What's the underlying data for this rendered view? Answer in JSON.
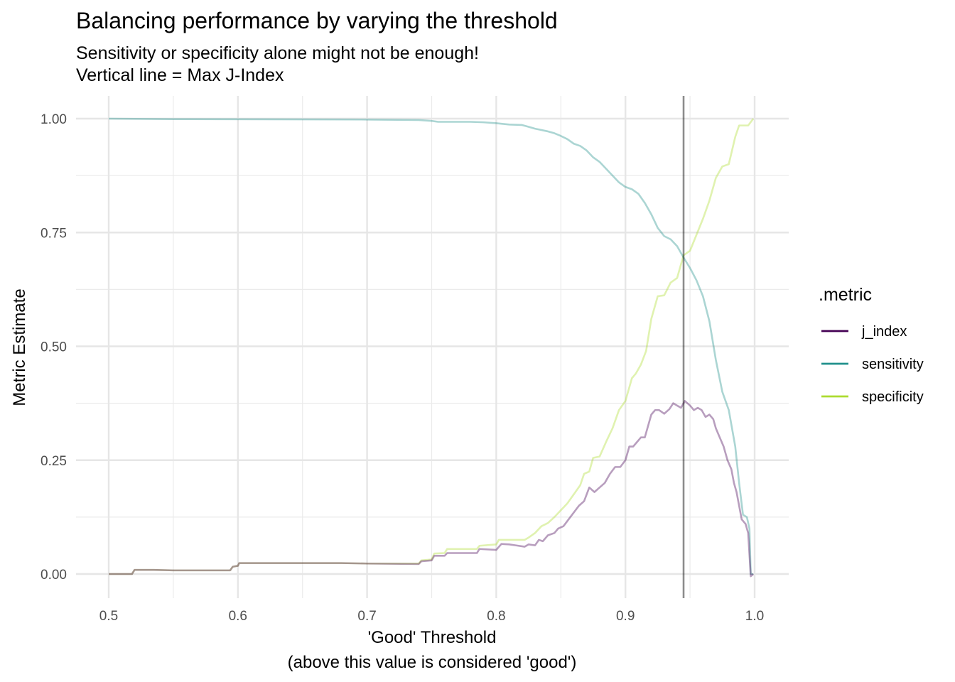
{
  "chart_data": {
    "type": "line",
    "title": "Balancing performance by varying the threshold",
    "subtitle_lines": [
      "Sensitivity or specificity alone might not be enough!",
      "Vertical line = Max J-Index"
    ],
    "xlabel_lines": [
      "'Good' Threshold",
      "(above this value is considered 'good')"
    ],
    "ylabel": "Metric Estimate",
    "xlim": [
      0.5,
      1.0
    ],
    "ylim": [
      0.0,
      1.0
    ],
    "x_ticks": [
      0.5,
      0.6,
      0.7,
      0.8,
      0.9,
      1.0
    ],
    "x_tick_labels": [
      "0.5",
      "0.6",
      "0.7",
      "0.8",
      "0.9",
      "1.0"
    ],
    "y_ticks": [
      0.0,
      0.25,
      0.5,
      0.75,
      1.0
    ],
    "y_tick_labels": [
      "0.00",
      "0.25",
      "0.50",
      "0.75",
      "1.00"
    ],
    "grid": true,
    "vline_x": 0.945,
    "legend": {
      "title": ".metric",
      "position": "right"
    },
    "series": [
      {
        "name": "j_index",
        "color": "#440154",
        "points": [
          [
            0.5,
            0.0
          ],
          [
            0.518,
            0.0
          ],
          [
            0.52,
            0.009
          ],
          [
            0.535,
            0.009
          ],
          [
            0.55,
            0.008
          ],
          [
            0.594,
            0.008
          ],
          [
            0.596,
            0.016
          ],
          [
            0.6,
            0.018
          ],
          [
            0.601,
            0.024
          ],
          [
            0.68,
            0.024
          ],
          [
            0.7,
            0.023
          ],
          [
            0.74,
            0.022
          ],
          [
            0.742,
            0.028
          ],
          [
            0.75,
            0.03
          ],
          [
            0.752,
            0.04
          ],
          [
            0.76,
            0.04
          ],
          [
            0.762,
            0.046
          ],
          [
            0.785,
            0.046
          ],
          [
            0.787,
            0.055
          ],
          [
            0.8,
            0.053
          ],
          [
            0.804,
            0.066
          ],
          [
            0.81,
            0.065
          ],
          [
            0.815,
            0.063
          ],
          [
            0.822,
            0.06
          ],
          [
            0.825,
            0.065
          ],
          [
            0.83,
            0.063
          ],
          [
            0.833,
            0.075
          ],
          [
            0.836,
            0.072
          ],
          [
            0.84,
            0.085
          ],
          [
            0.845,
            0.09
          ],
          [
            0.848,
            0.1
          ],
          [
            0.852,
            0.105
          ],
          [
            0.856,
            0.12
          ],
          [
            0.86,
            0.135
          ],
          [
            0.864,
            0.15
          ],
          [
            0.868,
            0.16
          ],
          [
            0.872,
            0.19
          ],
          [
            0.876,
            0.18
          ],
          [
            0.88,
            0.19
          ],
          [
            0.884,
            0.2
          ],
          [
            0.888,
            0.22
          ],
          [
            0.892,
            0.235
          ],
          [
            0.896,
            0.235
          ],
          [
            0.9,
            0.25
          ],
          [
            0.903,
            0.28
          ],
          [
            0.906,
            0.28
          ],
          [
            0.909,
            0.29
          ],
          [
            0.912,
            0.3
          ],
          [
            0.915,
            0.3
          ],
          [
            0.918,
            0.33
          ],
          [
            0.92,
            0.35
          ],
          [
            0.923,
            0.36
          ],
          [
            0.926,
            0.36
          ],
          [
            0.93,
            0.352
          ],
          [
            0.934,
            0.362
          ],
          [
            0.937,
            0.375
          ],
          [
            0.94,
            0.37
          ],
          [
            0.943,
            0.365
          ],
          [
            0.946,
            0.38
          ],
          [
            0.95,
            0.37
          ],
          [
            0.953,
            0.36
          ],
          [
            0.956,
            0.365
          ],
          [
            0.959,
            0.36
          ],
          [
            0.962,
            0.345
          ],
          [
            0.965,
            0.35
          ],
          [
            0.968,
            0.34
          ],
          [
            0.97,
            0.32
          ],
          [
            0.973,
            0.3
          ],
          [
            0.976,
            0.28
          ],
          [
            0.979,
            0.25
          ],
          [
            0.982,
            0.23
          ],
          [
            0.984,
            0.2
          ],
          [
            0.986,
            0.18
          ],
          [
            0.988,
            0.15
          ],
          [
            0.99,
            0.12
          ],
          [
            0.993,
            0.11
          ],
          [
            0.995,
            0.09
          ],
          [
            0.997,
            -0.005
          ],
          [
            0.999,
            0.0
          ]
        ]
      },
      {
        "name": "sensitivity",
        "color": "#21908c",
        "points": [
          [
            0.5,
            1.0
          ],
          [
            0.55,
            0.999
          ],
          [
            0.7,
            0.998
          ],
          [
            0.74,
            0.997
          ],
          [
            0.75,
            0.995
          ],
          [
            0.755,
            0.993
          ],
          [
            0.78,
            0.993
          ],
          [
            0.79,
            0.992
          ],
          [
            0.8,
            0.99
          ],
          [
            0.81,
            0.987
          ],
          [
            0.82,
            0.986
          ],
          [
            0.825,
            0.982
          ],
          [
            0.83,
            0.978
          ],
          [
            0.835,
            0.975
          ],
          [
            0.84,
            0.972
          ],
          [
            0.845,
            0.968
          ],
          [
            0.85,
            0.962
          ],
          [
            0.855,
            0.955
          ],
          [
            0.86,
            0.945
          ],
          [
            0.865,
            0.94
          ],
          [
            0.87,
            0.93
          ],
          [
            0.875,
            0.915
          ],
          [
            0.88,
            0.905
          ],
          [
            0.885,
            0.89
          ],
          [
            0.89,
            0.875
          ],
          [
            0.895,
            0.86
          ],
          [
            0.9,
            0.85
          ],
          [
            0.905,
            0.845
          ],
          [
            0.91,
            0.835
          ],
          [
            0.915,
            0.815
          ],
          [
            0.92,
            0.79
          ],
          [
            0.925,
            0.76
          ],
          [
            0.93,
            0.742
          ],
          [
            0.935,
            0.735
          ],
          [
            0.94,
            0.72
          ],
          [
            0.945,
            0.695
          ],
          [
            0.95,
            0.672
          ],
          [
            0.955,
            0.645
          ],
          [
            0.96,
            0.61
          ],
          [
            0.965,
            0.555
          ],
          [
            0.97,
            0.47
          ],
          [
            0.975,
            0.4
          ],
          [
            0.98,
            0.36
          ],
          [
            0.985,
            0.28
          ],
          [
            0.988,
            0.2
          ],
          [
            0.991,
            0.13
          ],
          [
            0.994,
            0.125
          ],
          [
            0.996,
            0.1
          ],
          [
            0.997,
            0.0
          ],
          [
            0.999,
            0.0
          ]
        ]
      },
      {
        "name": "specificity",
        "color": "#addc30",
        "points": [
          [
            0.5,
            0.0
          ],
          [
            0.518,
            0.0
          ],
          [
            0.52,
            0.009
          ],
          [
            0.535,
            0.009
          ],
          [
            0.55,
            0.008
          ],
          [
            0.594,
            0.008
          ],
          [
            0.596,
            0.016
          ],
          [
            0.6,
            0.018
          ],
          [
            0.601,
            0.024
          ],
          [
            0.68,
            0.024
          ],
          [
            0.7,
            0.023
          ],
          [
            0.74,
            0.023
          ],
          [
            0.742,
            0.03
          ],
          [
            0.75,
            0.032
          ],
          [
            0.752,
            0.045
          ],
          [
            0.76,
            0.046
          ],
          [
            0.762,
            0.055
          ],
          [
            0.785,
            0.055
          ],
          [
            0.787,
            0.062
          ],
          [
            0.8,
            0.065
          ],
          [
            0.802,
            0.075
          ],
          [
            0.822,
            0.075
          ],
          [
            0.825,
            0.08
          ],
          [
            0.83,
            0.09
          ],
          [
            0.835,
            0.105
          ],
          [
            0.84,
            0.112
          ],
          [
            0.845,
            0.125
          ],
          [
            0.85,
            0.14
          ],
          [
            0.855,
            0.155
          ],
          [
            0.86,
            0.175
          ],
          [
            0.865,
            0.195
          ],
          [
            0.868,
            0.22
          ],
          [
            0.872,
            0.225
          ],
          [
            0.875,
            0.255
          ],
          [
            0.88,
            0.258
          ],
          [
            0.885,
            0.29
          ],
          [
            0.89,
            0.32
          ],
          [
            0.895,
            0.36
          ],
          [
            0.9,
            0.38
          ],
          [
            0.905,
            0.43
          ],
          [
            0.908,
            0.44
          ],
          [
            0.912,
            0.46
          ],
          [
            0.916,
            0.49
          ],
          [
            0.92,
            0.56
          ],
          [
            0.925,
            0.61
          ],
          [
            0.93,
            0.612
          ],
          [
            0.935,
            0.64
          ],
          [
            0.94,
            0.65
          ],
          [
            0.945,
            0.7
          ],
          [
            0.95,
            0.71
          ],
          [
            0.955,
            0.745
          ],
          [
            0.96,
            0.78
          ],
          [
            0.965,
            0.82
          ],
          [
            0.97,
            0.87
          ],
          [
            0.975,
            0.895
          ],
          [
            0.98,
            0.9
          ],
          [
            0.985,
            0.96
          ],
          [
            0.988,
            0.985
          ],
          [
            0.995,
            0.985
          ],
          [
            0.999,
            1.0
          ]
        ]
      }
    ]
  }
}
